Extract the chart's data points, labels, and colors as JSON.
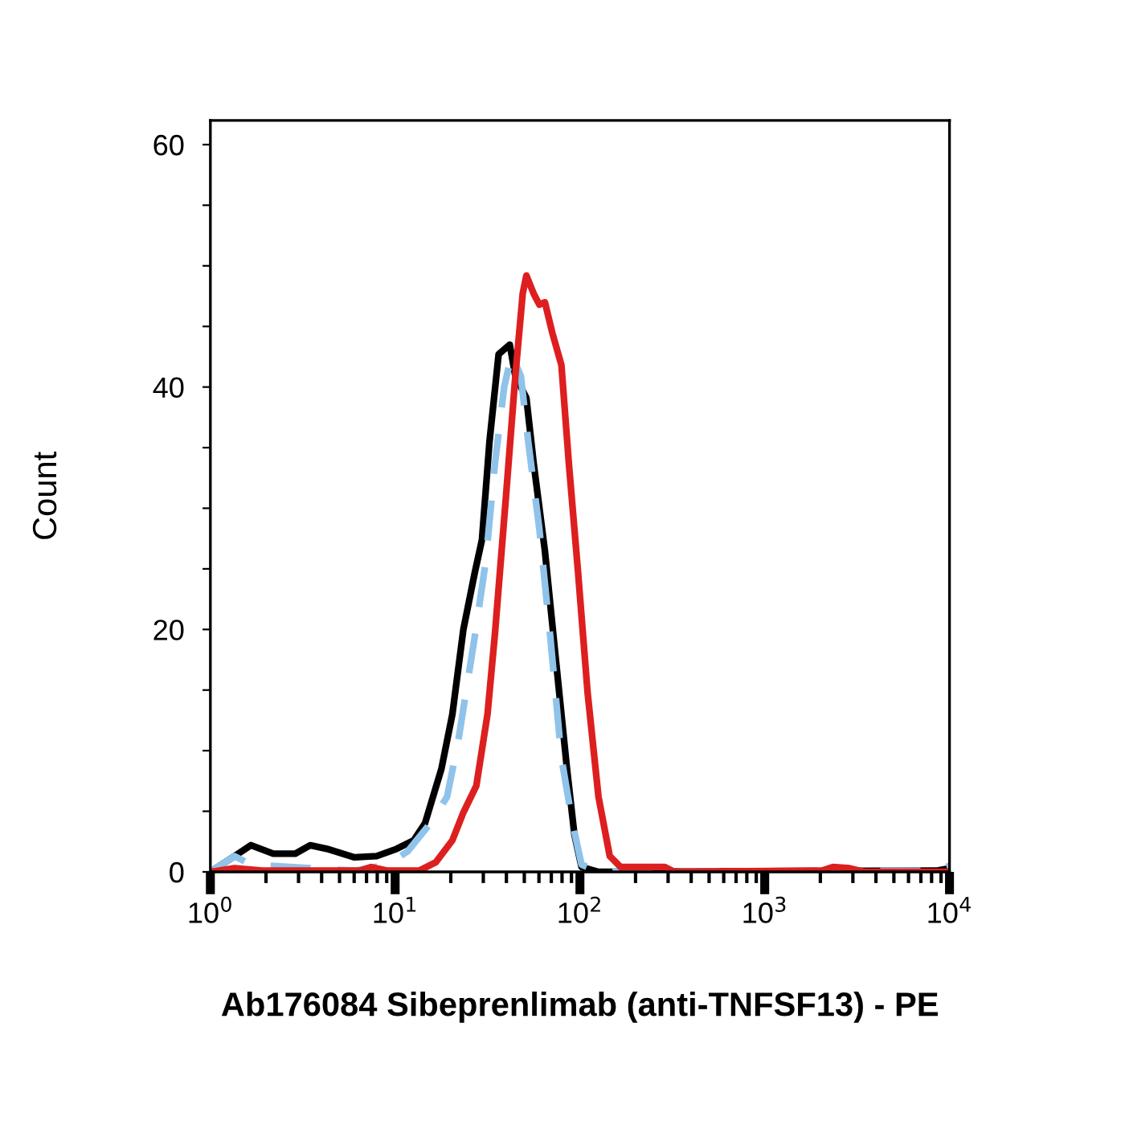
{
  "chart_data": {
    "type": "line",
    "xlabel": "Ab176084 Sibeprenlimab (anti-TNFSF13) - PE",
    "ylabel": "Count",
    "log": "x",
    "grid": false,
    "legend": false,
    "xlim": [
      1,
      10000
    ],
    "ylim": [
      0,
      62
    ],
    "xticks": [
      {
        "value": 1,
        "label": "10$^{0}$"
      },
      {
        "value": 10,
        "label": "10$^{1}$"
      },
      {
        "value": 100,
        "label": "10$^{2}$"
      },
      {
        "value": 1000,
        "label": "10$^{3}$"
      },
      {
        "value": 10000,
        "label": "10$^{4}$"
      }
    ],
    "yticks": [
      0,
      {
        "value": 5,
        "label": null
      },
      {
        "value": 10,
        "label": null
      },
      {
        "value": 15,
        "label": null
      },
      20,
      {
        "value": 25,
        "label": null
      },
      {
        "value": 30,
        "label": null
      },
      {
        "value": 35,
        "label": null
      },
      40,
      {
        "value": 45,
        "label": null
      },
      {
        "value": 50,
        "label": null
      },
      {
        "value": 55,
        "label": null
      },
      60
    ],
    "series": [
      {
        "color": "#000000",
        "line_style": "solid",
        "x": [
          1,
          1.35,
          1.66,
          2.19,
          2.88,
          3.47,
          4.27,
          6.03,
          7.94,
          10.2,
          12.6,
          14.5,
          17.8,
          20.4,
          23.4,
          26.9,
          29.5,
          32.4,
          36.3,
          41.7,
          44.7,
          51.3,
          56.2,
          64.6,
          74.1,
          85.1,
          93.3,
          102,
          126,
          8510,
          10000
        ],
        "values": [
          0,
          1.3,
          2.2,
          1.5,
          1.5,
          2.2,
          1.9,
          1.2,
          1.3,
          1.9,
          2.6,
          4,
          8.5,
          13,
          20,
          24.6,
          27.4,
          35.5,
          42.7,
          43.5,
          40.9,
          39.1,
          33.7,
          26.5,
          17.5,
          8.5,
          3.1,
          0.4,
          0,
          0.1,
          0.3
        ]
      },
      {
        "color": "#8fc3ea",
        "line_style": "dashed",
        "x": [
          1,
          1.35,
          1.66,
          2.69,
          6.03,
          9.12,
          11.7,
          15.5,
          19.1,
          21.9,
          26.9,
          30.9,
          34.7,
          38.9,
          42.7,
          47.9,
          52.5,
          60.3,
          69.2,
          79.4,
          91.2,
          102,
          126,
          8510,
          10000
        ],
        "values": [
          0,
          1.3,
          0.6,
          0.4,
          0.1,
          0.6,
          1.7,
          4,
          6.2,
          10.7,
          19.3,
          25.6,
          33.7,
          40,
          42.7,
          40.9,
          35.5,
          28.3,
          19.3,
          9.4,
          4,
          0.6,
          0,
          0.1,
          0.5
        ]
      },
      {
        "color": "#dd1f1f",
        "line_style": "solid",
        "x": [
          1,
          1.35,
          1.91,
          6.46,
          7.41,
          9.12,
          13.5,
          16.6,
          20.4,
          23.4,
          27.5,
          31.6,
          34.7,
          39.8,
          44.7,
          49.0,
          51.3,
          56.2,
          60.3,
          64.6,
          70.8,
          79.4,
          87.1,
          97.7,
          110,
          126,
          145,
          166,
          288,
          324,
          2040,
          2340,
          2880,
          3470,
          10000
        ],
        "values": [
          0,
          0.3,
          0.1,
          0.1,
          0.4,
          0.1,
          0.1,
          0.8,
          2.6,
          4.9,
          7.1,
          13,
          19.7,
          31,
          40.9,
          47.7,
          49.2,
          47.7,
          46.8,
          47,
          44.5,
          41.8,
          33.7,
          24.7,
          14.8,
          6.2,
          1.3,
          0.4,
          0.4,
          0,
          0.1,
          0.4,
          0.3,
          0,
          0
        ]
      }
    ]
  }
}
